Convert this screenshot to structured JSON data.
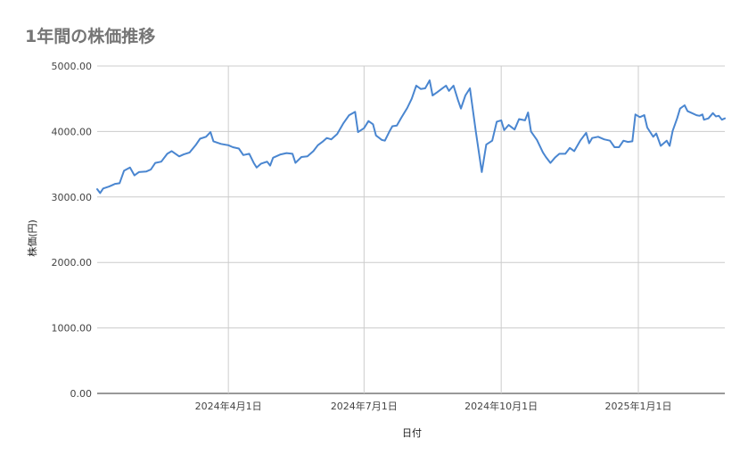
{
  "chart_data": {
    "type": "line",
    "title": "1年間の株価推移",
    "xlabel": "日付",
    "ylabel": "株価(円)",
    "ylim": [
      0,
      5000
    ],
    "yticks": [
      "0.00",
      "1000.00",
      "2000.00",
      "3000.00",
      "4000.00",
      "5000.00"
    ],
    "xlim": [
      "2024-01-04",
      "2025-02-28"
    ],
    "xticks": [
      {
        "date": "2024-04-01",
        "label": "2024年4月1日"
      },
      {
        "date": "2024-07-01",
        "label": "2024年7月1日"
      },
      {
        "date": "2024-10-01",
        "label": "2024年10月1日"
      },
      {
        "date": "2025-01-01",
        "label": "2025年1月1日"
      }
    ],
    "grid": true,
    "line_color": "#4a86d0",
    "series": [
      {
        "name": "",
        "points": [
          [
            "2024-01-04",
            3120
          ],
          [
            "2024-01-06",
            3060
          ],
          [
            "2024-01-08",
            3130
          ],
          [
            "2024-01-12",
            3160
          ],
          [
            "2024-01-16",
            3200
          ],
          [
            "2024-01-19",
            3210
          ],
          [
            "2024-01-22",
            3400
          ],
          [
            "2024-01-26",
            3450
          ],
          [
            "2024-01-29",
            3330
          ],
          [
            "2024-02-01",
            3380
          ],
          [
            "2024-02-06",
            3390
          ],
          [
            "2024-02-09",
            3420
          ],
          [
            "2024-02-12",
            3520
          ],
          [
            "2024-02-16",
            3540
          ],
          [
            "2024-02-20",
            3660
          ],
          [
            "2024-02-23",
            3700
          ],
          [
            "2024-02-28",
            3620
          ],
          [
            "2024-03-02",
            3650
          ],
          [
            "2024-03-06",
            3680
          ],
          [
            "2024-03-10",
            3790
          ],
          [
            "2024-03-13",
            3890
          ],
          [
            "2024-03-17",
            3920
          ],
          [
            "2024-03-20",
            3990
          ],
          [
            "2024-03-22",
            3850
          ],
          [
            "2024-03-27",
            3810
          ],
          [
            "2024-04-01",
            3790
          ],
          [
            "2024-04-04",
            3760
          ],
          [
            "2024-04-08",
            3740
          ],
          [
            "2024-04-11",
            3640
          ],
          [
            "2024-04-15",
            3660
          ],
          [
            "2024-04-18",
            3520
          ],
          [
            "2024-04-20",
            3450
          ],
          [
            "2024-04-23",
            3510
          ],
          [
            "2024-04-27",
            3540
          ],
          [
            "2024-04-29",
            3480
          ],
          [
            "2024-05-01",
            3600
          ],
          [
            "2024-05-06",
            3650
          ],
          [
            "2024-05-10",
            3670
          ],
          [
            "2024-05-14",
            3660
          ],
          [
            "2024-05-16",
            3520
          ],
          [
            "2024-05-20",
            3610
          ],
          [
            "2024-05-24",
            3620
          ],
          [
            "2024-05-28",
            3700
          ],
          [
            "2024-05-31",
            3790
          ],
          [
            "2024-06-03",
            3840
          ],
          [
            "2024-06-06",
            3900
          ],
          [
            "2024-06-09",
            3880
          ],
          [
            "2024-06-13",
            3960
          ],
          [
            "2024-06-17",
            4120
          ],
          [
            "2024-06-21",
            4250
          ],
          [
            "2024-06-25",
            4300
          ],
          [
            "2024-06-27",
            3990
          ],
          [
            "2024-07-01",
            4050
          ],
          [
            "2024-07-04",
            4160
          ],
          [
            "2024-07-07",
            4110
          ],
          [
            "2024-07-09",
            3940
          ],
          [
            "2024-07-13",
            3870
          ],
          [
            "2024-07-15",
            3860
          ],
          [
            "2024-07-18",
            4000
          ],
          [
            "2024-07-20",
            4080
          ],
          [
            "2024-07-23",
            4090
          ],
          [
            "2024-07-26",
            4210
          ],
          [
            "2024-07-30",
            4360
          ],
          [
            "2024-08-02",
            4500
          ],
          [
            "2024-08-05",
            4700
          ],
          [
            "2024-08-08",
            4650
          ],
          [
            "2024-08-11",
            4660
          ],
          [
            "2024-08-14",
            4780
          ],
          [
            "2024-08-16",
            4550
          ],
          [
            "2024-08-19",
            4600
          ],
          [
            "2024-08-22",
            4650
          ],
          [
            "2024-08-25",
            4700
          ],
          [
            "2024-08-27",
            4620
          ],
          [
            "2024-08-30",
            4700
          ],
          [
            "2024-09-02",
            4480
          ],
          [
            "2024-09-04",
            4350
          ],
          [
            "2024-09-07",
            4550
          ],
          [
            "2024-09-10",
            4660
          ],
          [
            "2024-09-14",
            4000
          ],
          [
            "2024-09-18",
            3380
          ],
          [
            "2024-09-21",
            3800
          ],
          [
            "2024-09-25",
            3860
          ],
          [
            "2024-09-28",
            4150
          ],
          [
            "2024-10-01",
            4170
          ],
          [
            "2024-10-03",
            4020
          ],
          [
            "2024-10-06",
            4100
          ],
          [
            "2024-10-10",
            4030
          ],
          [
            "2024-10-13",
            4190
          ],
          [
            "2024-10-17",
            4170
          ],
          [
            "2024-10-19",
            4290
          ],
          [
            "2024-10-21",
            4000
          ],
          [
            "2024-10-25",
            3870
          ],
          [
            "2024-10-29",
            3680
          ],
          [
            "2024-10-31",
            3610
          ],
          [
            "2024-11-03",
            3520
          ],
          [
            "2024-11-06",
            3600
          ],
          [
            "2024-11-09",
            3660
          ],
          [
            "2024-11-13",
            3660
          ],
          [
            "2024-11-16",
            3750
          ],
          [
            "2024-11-19",
            3700
          ],
          [
            "2024-11-23",
            3860
          ],
          [
            "2024-11-27",
            3980
          ],
          [
            "2024-11-29",
            3820
          ],
          [
            "2024-12-01",
            3900
          ],
          [
            "2024-12-05",
            3920
          ],
          [
            "2024-12-09",
            3880
          ],
          [
            "2024-12-13",
            3860
          ],
          [
            "2024-12-16",
            3760
          ],
          [
            "2024-12-19",
            3760
          ],
          [
            "2024-12-22",
            3860
          ],
          [
            "2024-12-25",
            3840
          ],
          [
            "2024-12-28",
            3850
          ],
          [
            "2024-12-30",
            4260
          ],
          [
            "2025-01-02",
            4220
          ],
          [
            "2025-01-05",
            4250
          ],
          [
            "2025-01-07",
            4060
          ],
          [
            "2025-01-11",
            3920
          ],
          [
            "2025-01-13",
            3970
          ],
          [
            "2025-01-16",
            3780
          ],
          [
            "2025-01-20",
            3860
          ],
          [
            "2025-01-22",
            3780
          ],
          [
            "2025-01-24",
            4010
          ],
          [
            "2025-01-27",
            4200
          ],
          [
            "2025-01-29",
            4350
          ],
          [
            "2025-02-01",
            4400
          ],
          [
            "2025-02-03",
            4310
          ],
          [
            "2025-02-06",
            4280
          ],
          [
            "2025-02-09",
            4250
          ],
          [
            "2025-02-11",
            4240
          ],
          [
            "2025-02-13",
            4260
          ],
          [
            "2025-02-14",
            4180
          ],
          [
            "2025-02-17",
            4200
          ],
          [
            "2025-02-20",
            4280
          ],
          [
            "2025-02-22",
            4230
          ],
          [
            "2025-02-24",
            4240
          ],
          [
            "2025-02-26",
            4180
          ],
          [
            "2025-02-28",
            4200
          ]
        ]
      }
    ]
  }
}
